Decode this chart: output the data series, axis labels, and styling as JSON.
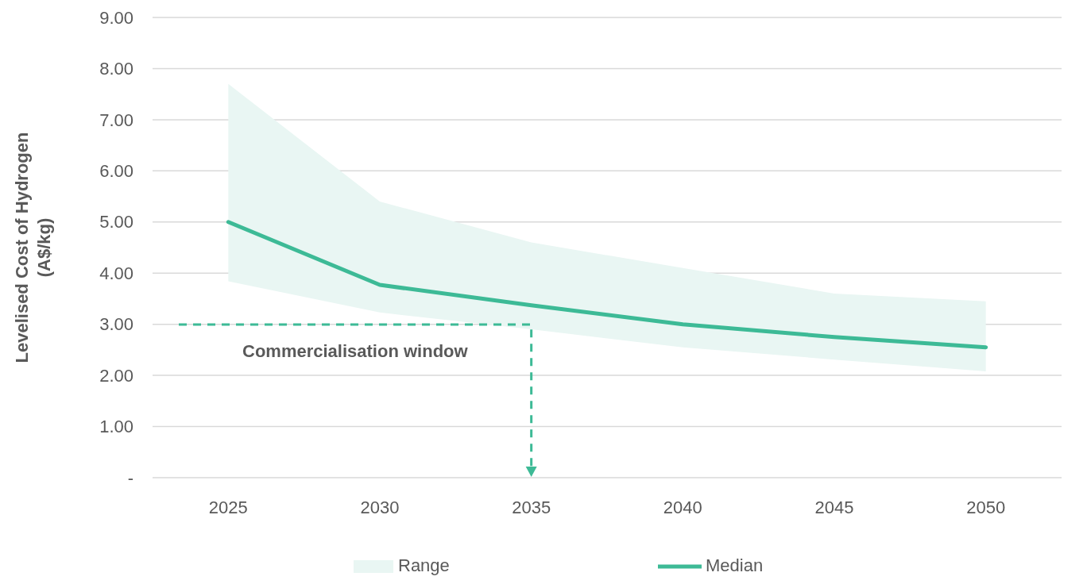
{
  "chart_data": {
    "type": "line",
    "ylabel": "Levelised Cost of Hydrogen (A$/kg)",
    "categories": [
      "2025",
      "2030",
      "2035",
      "2040",
      "2045",
      "2050"
    ],
    "series": [
      {
        "name": "Range",
        "type": "area",
        "color": "#e9f6f3",
        "values": [
          null,
          null,
          null,
          null,
          null,
          null
        ]
      },
      {
        "name": "Median",
        "color": "#3dba96",
        "values": [
          5.0,
          3.77,
          3.37,
          3.0,
          2.75,
          2.55
        ],
        "lower": [
          3.84,
          3.23,
          2.9,
          2.55,
          2.31,
          2.08
        ],
        "upper": [
          7.7,
          5.4,
          4.6,
          4.1,
          3.6,
          3.45
        ]
      }
    ],
    "ylim": [
      0,
      9
    ],
    "yticks": [
      {
        "value": 0,
        "label": "-"
      },
      {
        "value": 1,
        "label": "1.00"
      },
      {
        "value": 2,
        "label": "2.00"
      },
      {
        "value": 3,
        "label": "3.00"
      },
      {
        "value": 4,
        "label": "4.00"
      },
      {
        "value": 5,
        "label": "5.00"
      },
      {
        "value": 6,
        "label": "6.00"
      },
      {
        "value": 7,
        "label": "7.00"
      },
      {
        "value": 8,
        "label": "8.00"
      },
      {
        "value": 9,
        "label": "9.00"
      }
    ],
    "grid": "y",
    "legend": "bottom",
    "marker": "none",
    "line_style": "solid",
    "annotations": [
      "Commercialisation window"
    ]
  }
}
